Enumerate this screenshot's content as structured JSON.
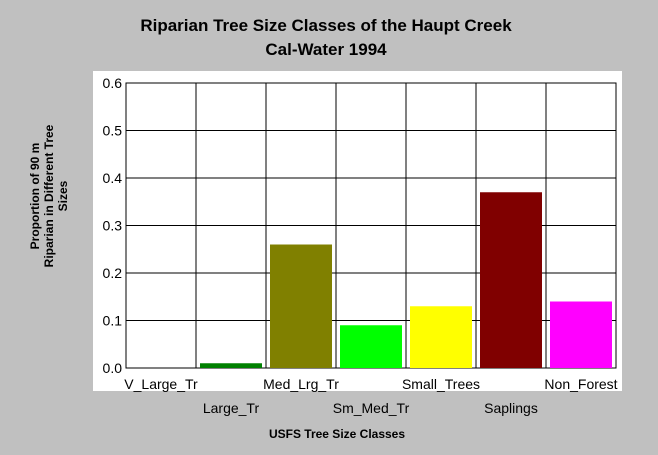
{
  "chart_data": {
    "type": "bar",
    "title_line1": "Riparian Tree Size Classes of the Haupt Creek",
    "title_line2": "Cal-Water 1994",
    "xlabel": "USFS Tree Size Classes",
    "ylabel_line1": "Proportion of 90 m",
    "ylabel_line2": "Riparian in Different Tree",
    "ylabel_line3": "Sizes",
    "categories": [
      "V_Large_Tr",
      "Large_Tr",
      "Med_Lrg_Tr",
      "Sm_Med_Tr",
      "Small_Trees",
      "Saplings",
      "Non_Forest"
    ],
    "values": [
      0.0,
      0.01,
      0.26,
      0.09,
      0.13,
      0.37,
      0.14
    ],
    "colors": [
      "#006400",
      "#008000",
      "#808000",
      "#00ff00",
      "#ffff00",
      "#800000",
      "#ff00ff"
    ],
    "ylim": [
      0,
      0.6
    ],
    "yticks": [
      "0.0",
      "0.1",
      "0.2",
      "0.3",
      "0.4",
      "0.5",
      "0.6"
    ],
    "grid": true,
    "legend": "none"
  }
}
